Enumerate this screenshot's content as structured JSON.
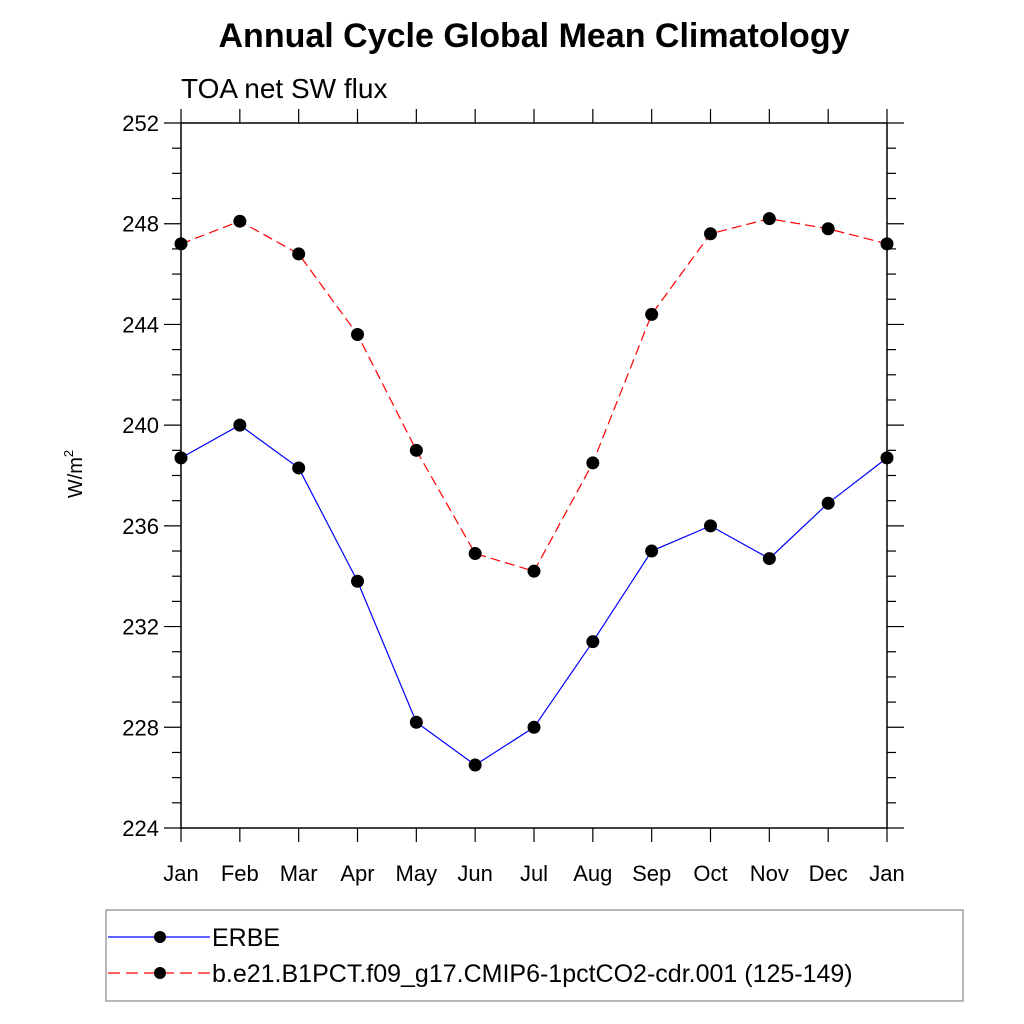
{
  "chart_data": {
    "type": "line",
    "title": "Annual Cycle Global Mean Climatology",
    "subtitle": "TOA net SW flux",
    "ylabel": "W/m",
    "ylabel_sup": "2",
    "xlabel": "",
    "categories": [
      "Jan",
      "Feb",
      "Mar",
      "Apr",
      "May",
      "Jun",
      "Jul",
      "Aug",
      "Sep",
      "Oct",
      "Nov",
      "Dec",
      "Jan"
    ],
    "ylim": [
      224,
      252
    ],
    "yticks": [
      "224",
      "228",
      "232",
      "236",
      "240",
      "244",
      "248",
      "252"
    ],
    "grid": false,
    "legend_position": "bottom",
    "series": [
      {
        "name": "ERBE",
        "color": "#0000ff",
        "dash": "solid",
        "marker": "circle",
        "values": [
          238.7,
          240.0,
          238.3,
          233.8,
          228.2,
          226.5,
          228.0,
          231.4,
          235.0,
          236.0,
          234.7,
          236.9,
          238.7
        ]
      },
      {
        "name": "b.e21.B1PCT.f09_g17.CMIP6-1pctCO2-cdr.001 (125-149)",
        "color": "#ff0000",
        "dash": "dashed",
        "marker": "circle",
        "values": [
          247.2,
          248.1,
          246.8,
          243.6,
          239.0,
          234.9,
          234.2,
          238.5,
          244.4,
          247.6,
          248.2,
          247.8,
          247.2
        ]
      }
    ]
  }
}
